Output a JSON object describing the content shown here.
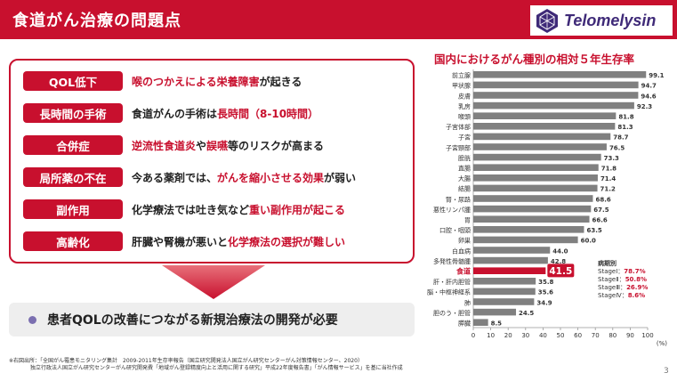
{
  "header": {
    "title": "食道がん治療の問題点",
    "logo_text": "Telomelysin"
  },
  "problems": [
    {
      "tag": "QOL低下",
      "parts": [
        {
          "t": "喉のつかえによる",
          "h": true
        },
        {
          "t": "栄養障害",
          "h": true
        },
        {
          "t": "が起きる",
          "h": false
        }
      ]
    },
    {
      "tag": "長時間の手術",
      "parts": [
        {
          "t": "食道がんの手術は",
          "h": false
        },
        {
          "t": "長時間（8-10時間）",
          "h": true
        }
      ]
    },
    {
      "tag": "合併症",
      "parts": [
        {
          "t": "逆流性食道炎",
          "h": true
        },
        {
          "t": "や",
          "h": false
        },
        {
          "t": "誤嚥",
          "h": true
        },
        {
          "t": "等のリスクが高まる",
          "h": false
        }
      ]
    },
    {
      "tag": "局所薬の不在",
      "parts": [
        {
          "t": "今ある薬剤では、",
          "h": false
        },
        {
          "t": "がんを縮小させる効果",
          "h": true
        },
        {
          "t": "が弱い",
          "h": false
        }
      ]
    },
    {
      "tag": "副作用",
      "parts": [
        {
          "t": "化学療法では吐き気など",
          "h": false
        },
        {
          "t": "重い副作用が起こる",
          "h": true
        }
      ]
    },
    {
      "tag": "高齢化",
      "parts": [
        {
          "t": "肝臓や腎機が悪いと",
          "h": false
        },
        {
          "t": "化学療法の選択が難しい",
          "h": true
        }
      ]
    }
  ],
  "conclusion": "患者QOLの改善につながる新規治療法の開発が必要",
  "footnote": {
    "line1": "※右図出所：「全国がん罹患モニタリング集計　2009-2011年生存率報告（国立研究開発法人国立がん研究センターがん対策情報センター、2020）",
    "line2": "独立行政法人国立がん研究センターがん研究開発費「地域がん登録精度向上と活用に関する研究」平成22年度報告書」「がん情報サービス」を基に当社作成"
  },
  "page_number": "3",
  "stage_box": {
    "header": "病期別",
    "rows": [
      {
        "label": "StageⅠ：",
        "value": "78.7%"
      },
      {
        "label": "StageⅡ：",
        "value": "50.8%"
      },
      {
        "label": "StageⅢ：",
        "value": "26.9%"
      },
      {
        "label": "StageⅣ：",
        "value": "8.6%"
      }
    ]
  },
  "colors": {
    "accent": "#c8102e",
    "bar": "#808080",
    "highlight": "#c8102e"
  },
  "chart_data": {
    "type": "bar",
    "orientation": "horizontal",
    "title": "国内におけるがん種別の相対５年生存率",
    "categories": [
      "前立腺",
      "甲状腺",
      "皮膚",
      "乳房",
      "喉頭",
      "子宮体部",
      "子宮",
      "子宮頸部",
      "膀胱",
      "直腸",
      "大腸",
      "結腸",
      "腎・尿路",
      "悪性リンパ腫",
      "胃",
      "口腔・咽頭",
      "卵巣",
      "白血病",
      "多発性骨髄腫",
      "食道",
      "肝・肝内胆管",
      "脳・中枢神経系",
      "肺",
      "胆のう・胆管",
      "膵臓"
    ],
    "values": [
      99.1,
      94.7,
      94.6,
      92.3,
      81.8,
      81.3,
      78.7,
      76.5,
      73.3,
      71.8,
      71.4,
      71.2,
      68.6,
      67.5,
      66.6,
      63.5,
      60.0,
      44.0,
      42.8,
      41.5,
      35.8,
      35.6,
      34.9,
      24.5,
      8.5
    ],
    "value_labels": [
      "99.1",
      "94.7",
      "94.6",
      "92.3",
      "81.8",
      "81.3",
      "78.7",
      "76.5",
      "73.3",
      "71.8",
      "71.4",
      "71.2",
      "68.6",
      "67.5",
      "66.6",
      "63.5",
      "60.0",
      "44.0",
      "42.8",
      "41.5",
      "35.8",
      "35.6",
      "34.9",
      "24.5",
      "8.5"
    ],
    "highlight_category": "食道",
    "xlim": [
      0,
      100
    ],
    "xticks": [
      "0",
      "10",
      "20",
      "30",
      "40",
      "50",
      "60",
      "70",
      "80",
      "90",
      "100"
    ],
    "xunit": "(%)"
  }
}
